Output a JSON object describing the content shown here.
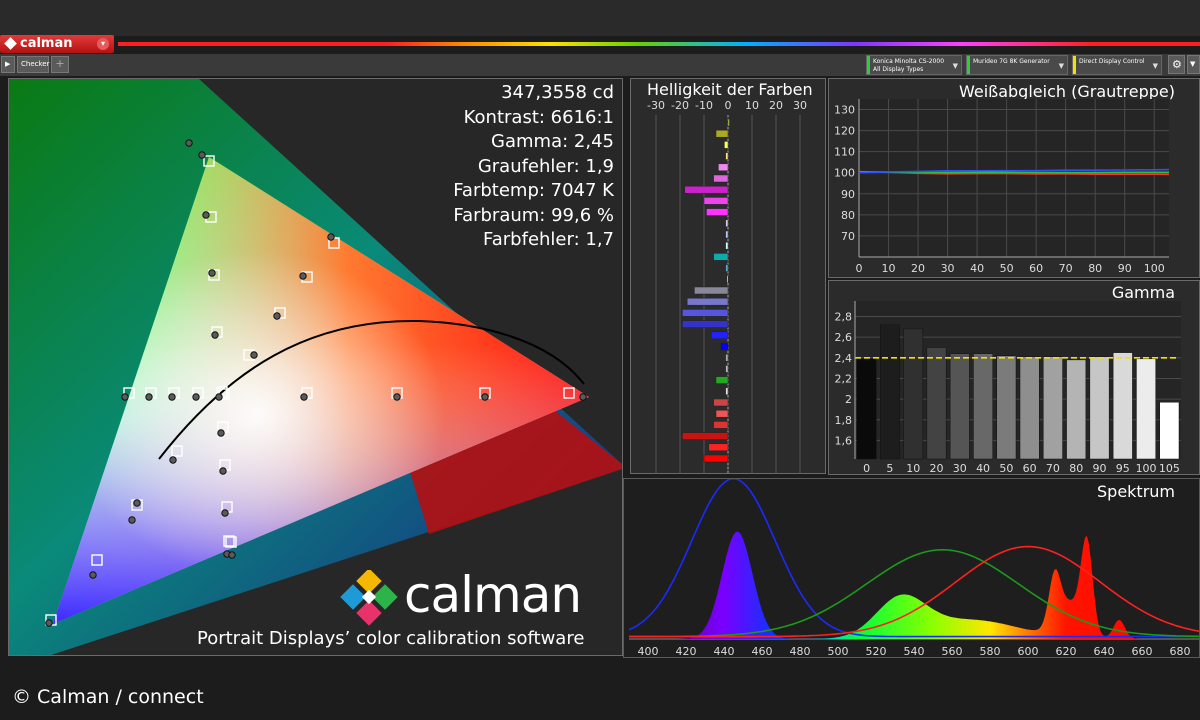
{
  "app": {
    "name": "calman",
    "tab": "Checker"
  },
  "devices": [
    {
      "line1": "Konica Minolta CS-2000",
      "line2": "All Display Types",
      "color": "#2ecc40"
    },
    {
      "line1": "Murideo 7G 8K Generator",
      "line2": "",
      "color": "#2ecc40"
    },
    {
      "line1": "Direct Display Control",
      "line2": "",
      "color": "#f2e200"
    }
  ],
  "stats": {
    "luminance": "347,3558 cd",
    "contrast": "Kontrast: 6616:1",
    "gamma": "Gamma: 2,45",
    "gray_error": "Graufehler: 1,9",
    "color_temp": "Farbtemp: 7047 K",
    "gamut": "Farbraum: 99,6 %",
    "color_error": "Farbfehler: 1,7"
  },
  "branding": {
    "logo_text": "calman",
    "tagline": "Portrait Displays’ color calibration software",
    "copyright": "© Calman / connect"
  },
  "colors": {
    "accent_red": "#d41c1c",
    "gamma_target": "#f5e000"
  },
  "chart_data": [
    {
      "type": "bar",
      "title": "Helligkeit der Farben",
      "orientation": "horizontal",
      "xlim": [
        -35,
        35
      ],
      "x_ticks": [
        "-30",
        "-20",
        "-10",
        "0",
        "10",
        "20",
        "30"
      ],
      "x_tick_values": [
        -30,
        -20,
        -10,
        0,
        10,
        20,
        30
      ],
      "values": [
        0.5,
        -5,
        -1.5,
        -1,
        -4,
        -6,
        -18,
        -10,
        -9,
        -1,
        -1,
        -1,
        -6,
        -1,
        -0.5,
        -14,
        -17,
        -19,
        -19,
        -7,
        -3,
        -1,
        -1,
        -5,
        -1,
        -6,
        -5,
        -6,
        -19,
        -8,
        -10
      ],
      "colors": [
        "#cccc55",
        "#aaaa22",
        "#ffff55",
        "#ffe080",
        "#ee88ee",
        "#dd66dd",
        "#cc22cc",
        "#ee44ee",
        "#ff33ff",
        "#ccccdd",
        "#aaccff",
        "#ccffff",
        "#11aaaa",
        "#55aacc",
        "#77ccff",
        "#888899",
        "#7777cc",
        "#5555dd",
        "#3333cc",
        "#2222ff",
        "#0000ff",
        "#aaaaaa",
        "#bbbbbb",
        "#22aa22",
        "#dddddd",
        "#cc4444",
        "#ee5555",
        "#dd3333",
        "#cc1111",
        "#ff2222",
        "#ff0000"
      ]
    },
    {
      "type": "line",
      "title": "Weißabgleich (Grautreppe)",
      "x": [
        0,
        10,
        20,
        30,
        40,
        50,
        60,
        70,
        80,
        90,
        100,
        105
      ],
      "xlim": [
        0,
        105
      ],
      "ylim": [
        60,
        135
      ],
      "x_ticks": [
        "0",
        "10",
        "20",
        "30",
        "40",
        "50",
        "60",
        "70",
        "80",
        "90",
        "100"
      ],
      "y_ticks": [
        "70",
        "80",
        "90",
        "100",
        "110",
        "120",
        "130"
      ],
      "series": [
        {
          "color": "#ff3030",
          "values": [
            100.5,
            100.2,
            99.7,
            99.5,
            99.6,
            99.6,
            99.4,
            99.5,
            99.3,
            99.3,
            99.3,
            99.2
          ]
        },
        {
          "color": "#30c030",
          "values": [
            100.4,
            100.3,
            100.2,
            100.1,
            100.2,
            100.2,
            100.1,
            100.1,
            100.1,
            100.2,
            100.2,
            100.2
          ]
        },
        {
          "color": "#3050ff",
          "values": [
            100.0,
            100.4,
            100.6,
            100.9,
            100.9,
            101.0,
            101.0,
            101.2,
            101.2,
            101.3,
            101.4,
            101.5
          ]
        }
      ]
    },
    {
      "type": "bar",
      "title": "Gamma",
      "categories": [
        "0",
        "5",
        "10",
        "20",
        "30",
        "40",
        "50",
        "60",
        "70",
        "80",
        "90",
        "95",
        "100",
        "105"
      ],
      "values": [
        2.39,
        2.72,
        2.68,
        2.5,
        2.44,
        2.44,
        2.42,
        2.41,
        2.41,
        2.38,
        2.41,
        2.45,
        2.39,
        1.97
      ],
      "target": 2.4,
      "ylim": [
        1.42,
        2.95
      ],
      "y_ticks": [
        "1,6",
        "1,8",
        "2",
        "2,2",
        "2,4",
        "2,6",
        "2,8"
      ],
      "y_tick_values": [
        1.6,
        1.8,
        2.0,
        2.2,
        2.4,
        2.6,
        2.8
      ]
    },
    {
      "type": "line",
      "title": "Spektrum",
      "xlim": [
        390,
        690
      ],
      "x_ticks": [
        "400",
        "420",
        "440",
        "460",
        "480",
        "500",
        "520",
        "540",
        "560",
        "580",
        "600",
        "620",
        "640",
        "660",
        "680"
      ],
      "x_tick_values": [
        400,
        420,
        440,
        460,
        480,
        500,
        520,
        540,
        560,
        580,
        600,
        620,
        640,
        660,
        680
      ],
      "target_curves": [
        {
          "color": "#1a2bff",
          "peak_nm": 445,
          "width_nm": 22,
          "height": 1.0
        },
        {
          "color": "#1c9a1c",
          "peak_nm": 555,
          "width_nm": 40,
          "height": 0.55
        },
        {
          "color": "#ff2020",
          "peak_nm": 600,
          "width_nm": 38,
          "height": 0.57
        }
      ],
      "measured_peaks_nm": [
        447,
        533,
        614,
        631,
        648
      ]
    },
    {
      "type": "scatter",
      "title": "",
      "description_points": "CIE chromaticity gamut triangle with targets (squares) and measurements (circles)",
      "gamut_xy": [
        [
          0.708,
          0.292
        ],
        [
          0.17,
          0.797
        ],
        [
          0.131,
          0.046
        ]
      ],
      "white_xy": [
        0.3127,
        0.329
      ]
    }
  ]
}
